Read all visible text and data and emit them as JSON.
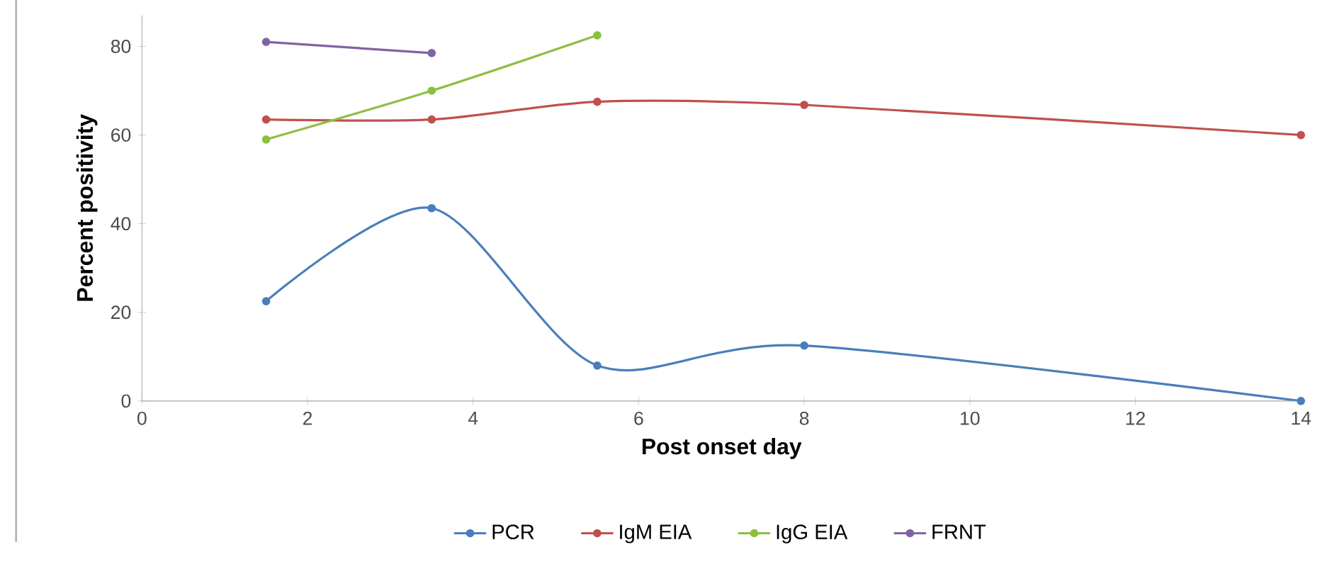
{
  "chart_data": {
    "type": "line",
    "xlabel": "Post onset day",
    "ylabel": "Percent positivity",
    "x": [
      1.5,
      3.5,
      5.5,
      8,
      14
    ],
    "series": [
      {
        "name": "PCR",
        "color": "#4a7ebb",
        "values": [
          22.5,
          43.5,
          8,
          12.5,
          0
        ]
      },
      {
        "name": "IgM EIA",
        "color": "#c0504d",
        "values": [
          63.5,
          63.5,
          67.5,
          66.8,
          60
        ]
      },
      {
        "name": "IgG EIA",
        "color": "#8cbf3f",
        "values": [
          59,
          70,
          82.5,
          null,
          null
        ]
      },
      {
        "name": "FRNT",
        "color": "#8064a2",
        "values": [
          81,
          78.5,
          null,
          null,
          null
        ]
      }
    ],
    "xlim": [
      0,
      14
    ],
    "xticks": [
      0,
      2,
      4,
      6,
      8,
      10,
      12,
      14
    ],
    "ylim": [
      0,
      87
    ],
    "yticks": [
      0,
      20,
      40,
      60,
      80
    ],
    "grid": false,
    "legend": "bottom",
    "marker": "circle",
    "line_style": "solid"
  }
}
